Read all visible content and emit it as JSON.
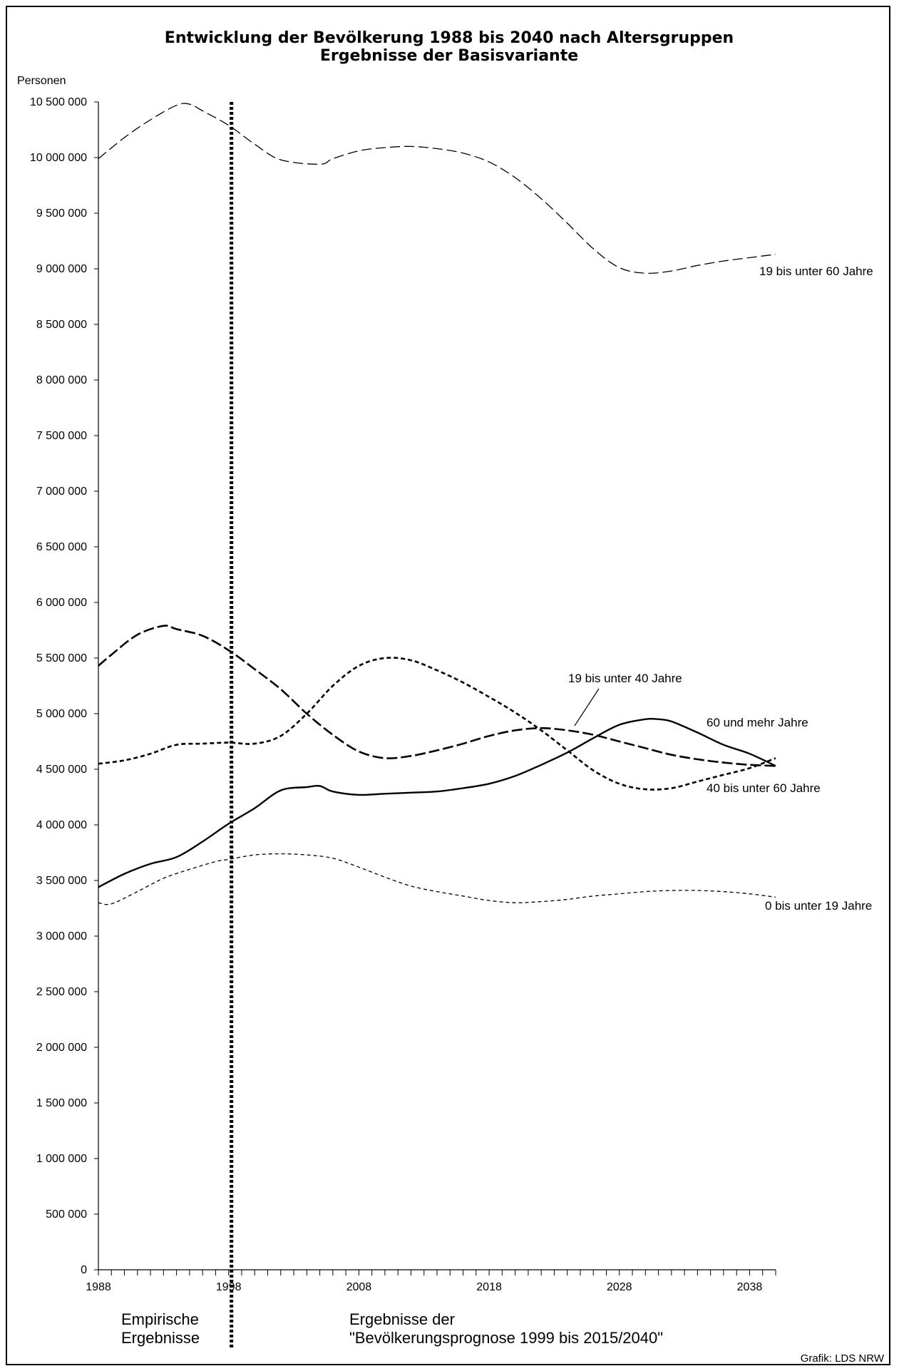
{
  "chart_data": {
    "type": "line",
    "title": "Entwicklung der Bevölkerung 1988 bis 2040 nach Altersgruppen",
    "subtitle": "Ergebnisse der Basisvariante",
    "ylabel": "Personen",
    "xlabel": "",
    "ylim": [
      0,
      10500000
    ],
    "xlim": [
      1988,
      2040
    ],
    "y_ticks": [
      0,
      500000,
      1000000,
      1500000,
      2000000,
      2500000,
      3000000,
      3500000,
      4000000,
      4500000,
      5000000,
      5500000,
      6000000,
      6500000,
      7000000,
      7500000,
      8000000,
      8500000,
      9000000,
      9500000,
      10000000,
      10500000
    ],
    "y_tick_labels": [
      "0",
      "500 000",
      "1 000 000",
      "1 500 000",
      "2 000 000",
      "2 500 000",
      "3 000 000",
      "3 500 000",
      "4 000 000",
      "4 500 000",
      "5 000 000",
      "5 500 000",
      "6 000 000",
      "6 500 000",
      "7 000 000",
      "7 500 000",
      "8 000 000",
      "8 500 000",
      "9 000 000",
      "9 500 000",
      "10 000 000",
      "10 500 000"
    ],
    "x_ticks": [
      1988,
      1998,
      2008,
      2018,
      2028,
      2038
    ],
    "x_tick_labels": [
      "1988",
      "1998",
      "2008",
      "2018",
      "2028",
      "2038"
    ],
    "divider_year": 1998,
    "grid": false,
    "annotations": {
      "left_note": [
        "Empirische",
        "Ergebnisse"
      ],
      "right_note": [
        "Ergebnisse der",
        "\"Bevölkerungsprognose 1999 bis 2015/2040\""
      ],
      "credit": "Grafik: LDS NRW"
    },
    "series": [
      {
        "name": "19 bis unter 60 Jahre",
        "style": "dash-long-thin",
        "x": [
          1988,
          1990,
          1992,
          1994,
          1995,
          1996,
          1998,
          2000,
          2002,
          2005,
          2006,
          2008,
          2010,
          2012,
          2014,
          2016,
          2018,
          2020,
          2022,
          2024,
          2026,
          2028,
          2030,
          2032,
          2034,
          2036,
          2038,
          2040
        ],
        "values": [
          9990000,
          10180000,
          10340000,
          10470000,
          10480000,
          10420000,
          10290000,
          10120000,
          9980000,
          9940000,
          9990000,
          10060000,
          10090000,
          10100000,
          10080000,
          10040000,
          9960000,
          9820000,
          9630000,
          9410000,
          9180000,
          9010000,
          8960000,
          8980000,
          9030000,
          9070000,
          9100000,
          9130000
        ]
      },
      {
        "name": "19 bis unter 40 Jahre",
        "style": "dash-long-bold",
        "x": [
          1988,
          1989,
          1991,
          1993,
          1994,
          1996,
          1998,
          2000,
          2002,
          2004,
          2006,
          2008,
          2010,
          2012,
          2014,
          2016,
          2018,
          2020,
          2022,
          2024,
          2026,
          2028,
          2030,
          2032,
          2034,
          2036,
          2038,
          2040
        ],
        "values": [
          5430000,
          5530000,
          5710000,
          5790000,
          5760000,
          5700000,
          5570000,
          5400000,
          5220000,
          5000000,
          4810000,
          4660000,
          4600000,
          4620000,
          4670000,
          4730000,
          4800000,
          4850000,
          4870000,
          4850000,
          4810000,
          4750000,
          4690000,
          4630000,
          4590000,
          4560000,
          4540000,
          4530000
        ]
      },
      {
        "name": "40 bis unter 60 Jahre",
        "style": "dash-short-bold",
        "x": [
          1988,
          1990,
          1992,
          1994,
          1996,
          1998,
          2000,
          2002,
          2004,
          2006,
          2008,
          2010,
          2012,
          2014,
          2016,
          2018,
          2020,
          2022,
          2024,
          2026,
          2028,
          2030,
          2032,
          2034,
          2036,
          2038,
          2040
        ],
        "values": [
          4550000,
          4580000,
          4640000,
          4720000,
          4730000,
          4740000,
          4730000,
          4800000,
          5000000,
          5250000,
          5430000,
          5500000,
          5480000,
          5390000,
          5280000,
          5150000,
          5010000,
          4850000,
          4670000,
          4490000,
          4370000,
          4320000,
          4330000,
          4390000,
          4450000,
          4510000,
          4600000
        ]
      },
      {
        "name": "60 und mehr Jahre",
        "style": "solid",
        "x": [
          1988,
          1990,
          1992,
          1994,
          1996,
          1998,
          2000,
          2002,
          2004,
          2005,
          2006,
          2008,
          2010,
          2012,
          2014,
          2016,
          2018,
          2020,
          2022,
          2024,
          2026,
          2028,
          2030,
          2031,
          2032,
          2034,
          2036,
          2038,
          2040
        ],
        "values": [
          3440000,
          3560000,
          3650000,
          3710000,
          3850000,
          4010000,
          4150000,
          4310000,
          4340000,
          4350000,
          4300000,
          4270000,
          4280000,
          4290000,
          4300000,
          4330000,
          4370000,
          4440000,
          4540000,
          4650000,
          4780000,
          4900000,
          4950000,
          4950000,
          4930000,
          4830000,
          4720000,
          4640000,
          4530000
        ]
      },
      {
        "name": "0 bis unter 19 Jahre",
        "style": "dash-short-thin",
        "x": [
          1988,
          1989,
          1991,
          1993,
          1995,
          1997,
          1998,
          2000,
          2002,
          2004,
          2006,
          2008,
          2010,
          2012,
          2014,
          2016,
          2018,
          2020,
          2022,
          2024,
          2026,
          2028,
          2030,
          2032,
          2034,
          2036,
          2038,
          2040
        ],
        "values": [
          3300000,
          3290000,
          3400000,
          3520000,
          3600000,
          3670000,
          3690000,
          3730000,
          3740000,
          3730000,
          3700000,
          3620000,
          3530000,
          3450000,
          3400000,
          3360000,
          3320000,
          3300000,
          3310000,
          3330000,
          3360000,
          3380000,
          3400000,
          3410000,
          3410000,
          3400000,
          3380000,
          3350000
        ]
      }
    ]
  }
}
